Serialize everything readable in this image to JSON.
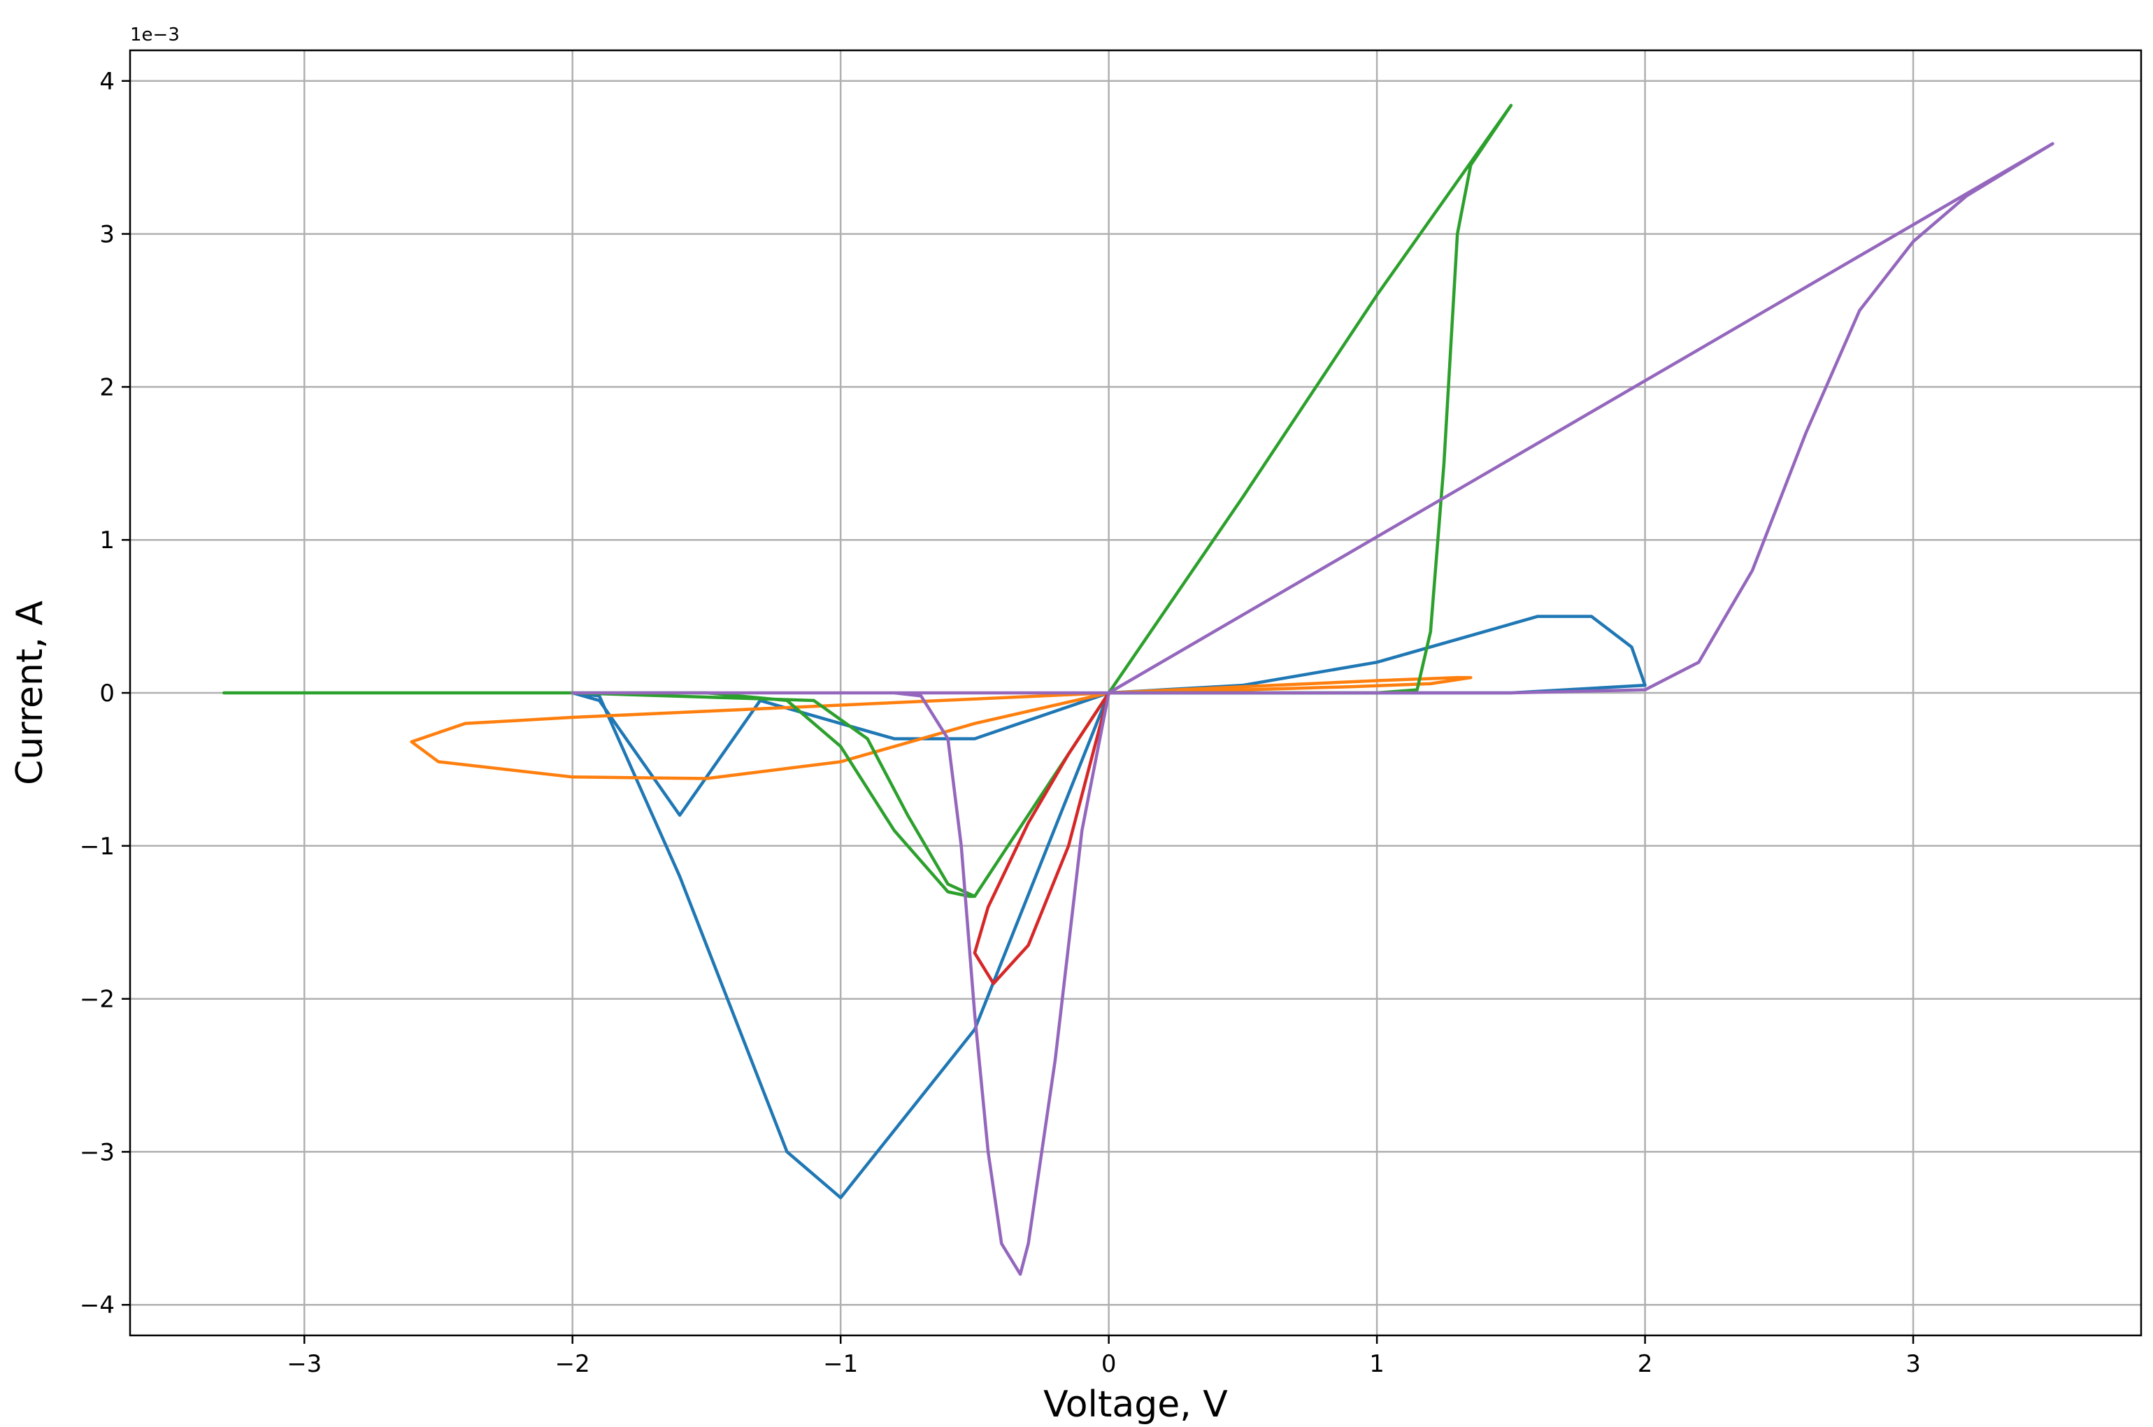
{
  "chart_data": {
    "type": "line",
    "title": "",
    "xlabel": "Voltage, V",
    "ylabel": "Current, A",
    "y_offset_label": "1e−3",
    "xlim": [
      -3.65,
      3.85
    ],
    "ylim": [
      -4.2,
      4.2
    ],
    "grid": true,
    "legend": "none",
    "x_ticks": [
      -3,
      -2,
      -1,
      0,
      1,
      2,
      3
    ],
    "x_tick_labels": [
      "−3",
      "−2",
      "−1",
      "0",
      "1",
      "2",
      "3"
    ],
    "y_ticks": [
      -4,
      -3,
      -2,
      -1,
      0,
      1,
      2,
      3,
      4
    ],
    "y_tick_labels": [
      "−4",
      "−3",
      "−2",
      "−1",
      "0",
      "1",
      "2",
      "3",
      "4"
    ],
    "series": [
      {
        "color": "#1f77b4",
        "x": [
          0,
          1.5,
          2.0,
          1.95,
          1.8,
          1.6,
          1.3,
          1.0,
          0.5,
          0,
          -0.5,
          -0.8,
          -1.0,
          -1.3,
          -1.6,
          -1.8,
          -1.9,
          -2.0,
          -1.9,
          -1.6,
          -1.2,
          -1.0,
          -0.5,
          0
        ],
        "y": [
          0,
          0,
          0.05,
          0.3,
          0.5,
          0.5,
          0.35,
          0.2,
          0.05,
          0,
          -0.3,
          -0.3,
          -0.2,
          -0.05,
          -0.8,
          -0.3,
          -0.05,
          0,
          -0.02,
          -1.2,
          -3.0,
          -3.3,
          -2.2,
          -0.0
        ]
      },
      {
        "color": "#ff7f0e",
        "x": [
          0,
          -0.5,
          -1.0,
          -1.5,
          -2.0,
          -2.5,
          -2.6,
          -2.4,
          -2.0,
          -1.5,
          -1.0,
          -0.5,
          0,
          0.5,
          1.0,
          1.3,
          1.35,
          1.2,
          0.9,
          0.5,
          0
        ],
        "y": [
          0,
          -0.2,
          -0.45,
          -0.56,
          -0.55,
          -0.45,
          -0.32,
          -0.2,
          -0.16,
          -0.12,
          -0.08,
          -0.04,
          0,
          0.04,
          0.08,
          0.1,
          0.1,
          0.06,
          0.04,
          0.02,
          0
        ]
      },
      {
        "color": "#2ca02c",
        "x": [
          0,
          0.5,
          1.0,
          1.15,
          1.2,
          1.25,
          1.28,
          1.3,
          1.35,
          1.5,
          1.0,
          0.5,
          0,
          -0.5,
          -0.52,
          -0.6,
          -0.8,
          -1.0,
          -1.2,
          -1.5,
          -2.0,
          -2.5,
          -3.0,
          -3.3,
          -2.0,
          -1.1,
          -0.9,
          -0.75,
          -0.6,
          -0.5,
          0
        ],
        "y": [
          0,
          0,
          0,
          0.02,
          0.4,
          1.5,
          2.4,
          3.0,
          3.45,
          3.84,
          2.6,
          1.28,
          0,
          -1.33,
          -1.33,
          -1.3,
          -0.9,
          -0.35,
          -0.05,
          0,
          0,
          0,
          0,
          0,
          0,
          -0.05,
          -0.3,
          -0.8,
          -1.25,
          -1.33,
          0
        ]
      },
      {
        "color": "#d62728",
        "x": [
          0,
          -0.15,
          -0.3,
          -0.45,
          -0.5,
          -0.43,
          -0.3,
          -0.15,
          0
        ],
        "y": [
          0,
          -0.4,
          -0.85,
          -1.4,
          -1.7,
          -1.9,
          -1.65,
          -1.0,
          0
        ]
      },
      {
        "color": "#9467bd",
        "x": [
          0,
          1.0,
          1.5,
          2.0,
          2.2,
          2.4,
          2.6,
          2.8,
          3.0,
          3.2,
          3.52,
          3.0,
          2.0,
          1.0,
          0,
          -0.1,
          -0.2,
          -0.3,
          -0.33,
          -0.4,
          -0.45,
          -0.5,
          -0.55,
          -0.6,
          -0.7,
          -0.8,
          -1.0,
          -1.5,
          -2.0,
          -1.5,
          -1.0,
          -0.5,
          0
        ],
        "y": [
          0,
          0,
          0,
          0.02,
          0.2,
          0.8,
          1.7,
          2.5,
          2.95,
          3.25,
          3.59,
          3.06,
          2.04,
          1.02,
          0,
          -0.9,
          -2.4,
          -3.6,
          -3.8,
          -3.6,
          -3.0,
          -2.1,
          -1.0,
          -0.3,
          -0.02,
          0,
          0,
          0,
          0,
          0,
          0,
          0,
          0
        ]
      }
    ]
  }
}
